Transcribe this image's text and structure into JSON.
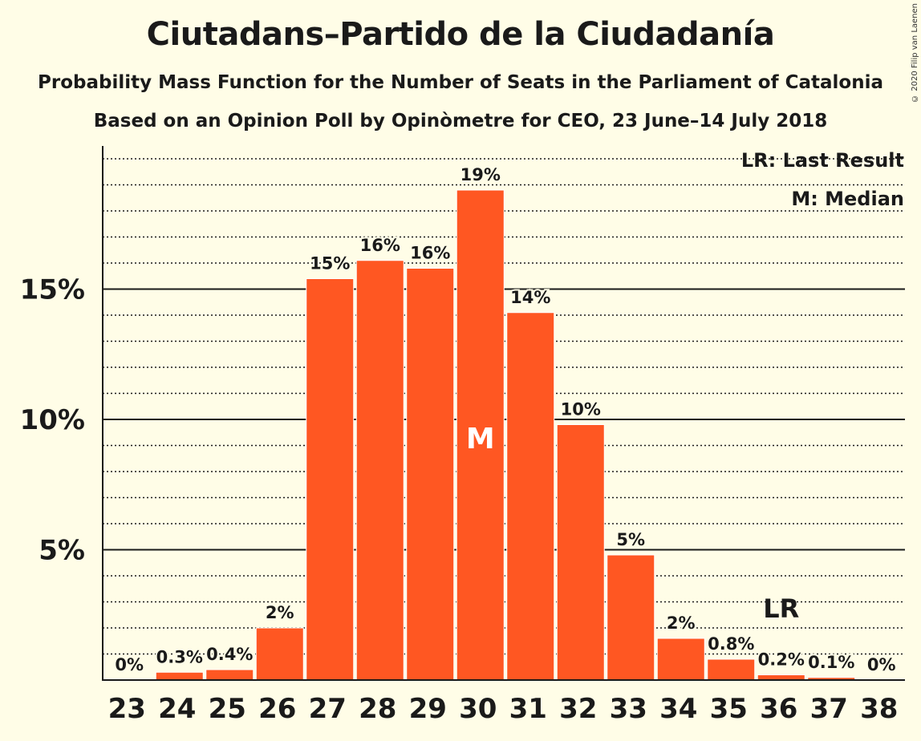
{
  "title": "Ciutadans–Partido de la Ciudadanía",
  "subtitle": "Probability Mass Function for the Number of Seats in the Parliament of Catalonia",
  "subtitle2": "Based on an Opinion Poll by Opinòmetre for CEO, 23 June–14 July 2018",
  "copyright": "© 2020 Filip van Laenen",
  "legend": {
    "last_result": "LR: Last Result",
    "median": "M: Median"
  },
  "colors": {
    "bar": "#ff5722",
    "background": "#fffde7",
    "text": "#1a1a1a"
  },
  "chart_data": {
    "type": "bar",
    "categories": [
      "23",
      "24",
      "25",
      "26",
      "27",
      "28",
      "29",
      "30",
      "31",
      "32",
      "33",
      "34",
      "35",
      "36",
      "37",
      "38"
    ],
    "values": [
      0,
      0.3,
      0.4,
      2.0,
      15.4,
      16.1,
      15.8,
      18.8,
      14.1,
      9.8,
      4.8,
      1.6,
      0.8,
      0.2,
      0.1,
      0
    ],
    "data_labels": [
      "0%",
      "0.3%",
      "0.4%",
      "2%",
      "15%",
      "16%",
      "16%",
      "19%",
      "14%",
      "10%",
      "5%",
      "2%",
      "0.8%",
      "0.2%",
      "0.1%",
      "0%"
    ],
    "ylim": [
      0,
      20.5
    ],
    "y_ticks": [
      5,
      10,
      15
    ],
    "y_tick_labels": [
      "5%",
      "10%",
      "15%"
    ],
    "minor_grid_step": 1,
    "median_category": "30",
    "median_label": "M",
    "last_result_category": "36",
    "last_result_label": "LR",
    "grid": true,
    "legend_position": "top-right"
  }
}
